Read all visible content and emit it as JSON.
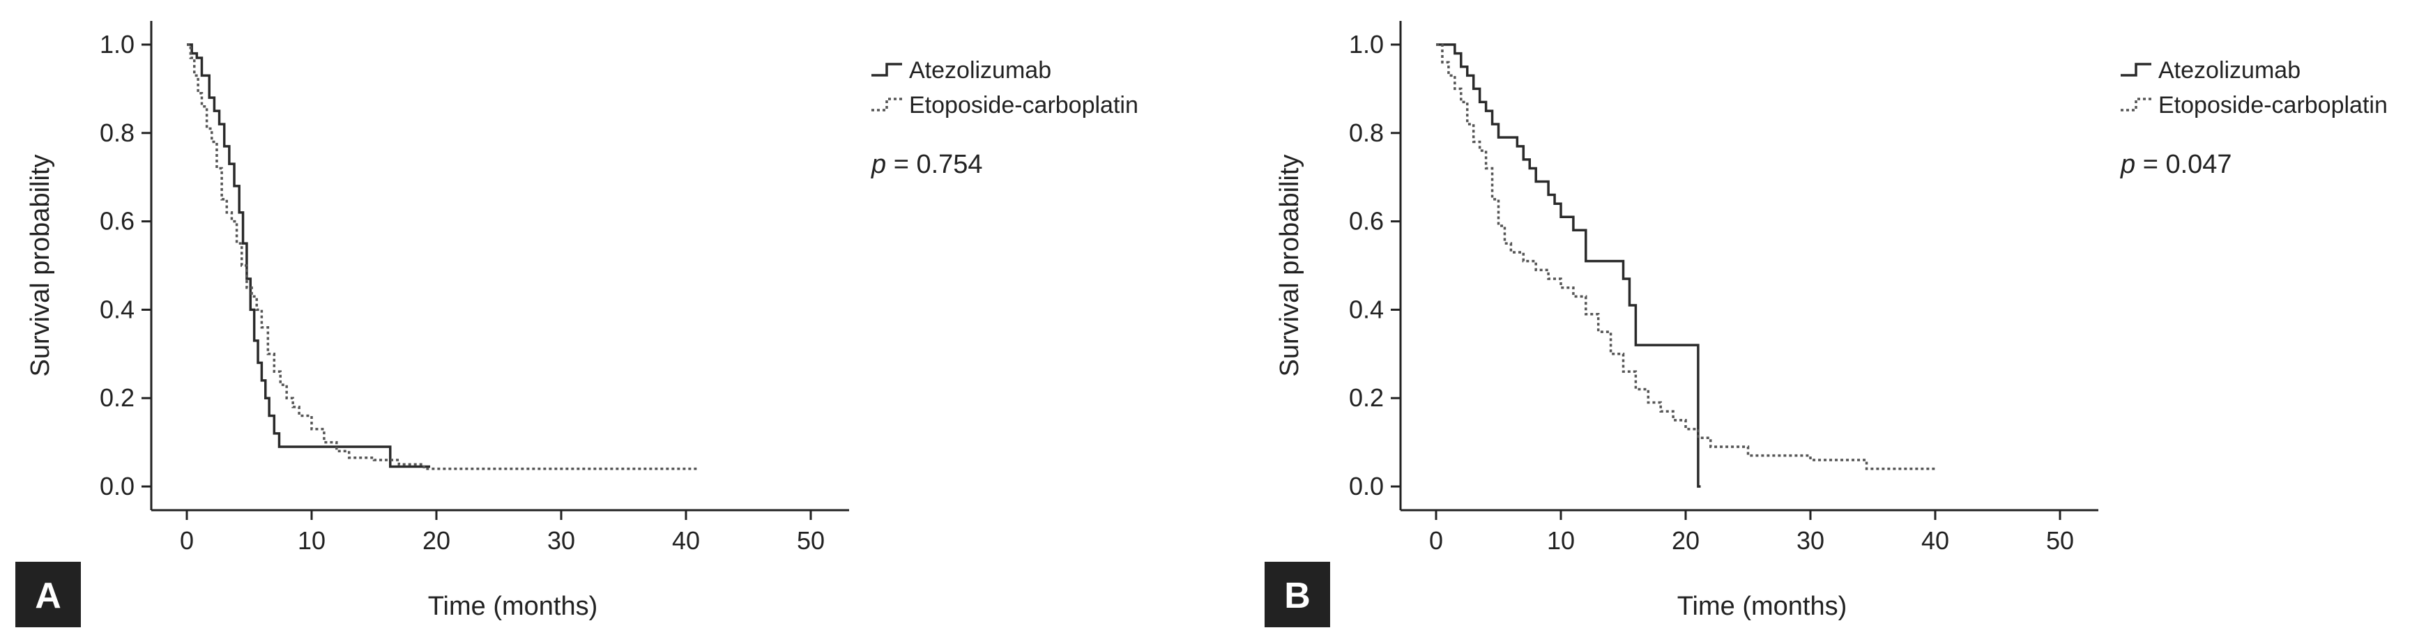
{
  "chart_data": [
    {
      "panel_label": "A",
      "type": "line",
      "xlabel": "Time (months)",
      "ylabel": "Survival probability",
      "xlim": [
        0,
        50
      ],
      "ylim": [
        0,
        1
      ],
      "xticks": [
        0,
        10,
        20,
        30,
        40,
        50
      ],
      "yticks": [
        0.0,
        0.2,
        0.4,
        0.6,
        0.8,
        1.0
      ],
      "x_tick_labels": [
        "0",
        "10",
        "20",
        "30",
        "40",
        "50"
      ],
      "y_tick_labels": [
        "0.0",
        "0.2",
        "0.4",
        "0.6",
        "0.8",
        "1.0"
      ],
      "legend": {
        "placement": "top-right"
      },
      "annotation": {
        "prefix": "p",
        "text": " = 0.754"
      },
      "series": [
        {
          "name": "Atezolizumab",
          "style": "solid",
          "step": true,
          "x": [
            0,
            0.4,
            0.8,
            1.2,
            1.8,
            2.2,
            2.6,
            3.0,
            3.4,
            3.8,
            4.2,
            4.5,
            4.8,
            5.1,
            5.4,
            5.7,
            6.0,
            6.3,
            6.6,
            7.0,
            7.4,
            16.3,
            19.5
          ],
          "y": [
            1.0,
            0.98,
            0.97,
            0.93,
            0.88,
            0.85,
            0.82,
            0.77,
            0.73,
            0.68,
            0.62,
            0.55,
            0.47,
            0.4,
            0.33,
            0.28,
            0.24,
            0.2,
            0.16,
            0.12,
            0.09,
            0.045,
            0.045
          ]
        },
        {
          "name": "Etoposide-carboplatin",
          "style": "dotted",
          "step": true,
          "x": [
            0,
            0.3,
            0.6,
            0.9,
            1.2,
            1.6,
            2.0,
            2.4,
            2.8,
            3.2,
            3.6,
            4.0,
            4.4,
            4.8,
            5.2,
            5.6,
            6.0,
            6.5,
            7.0,
            7.5,
            8.0,
            8.5,
            9.0,
            10.0,
            11.0,
            12.0,
            13.0,
            15.0,
            17.0,
            19.0,
            41.0
          ],
          "y": [
            1.0,
            0.97,
            0.93,
            0.89,
            0.86,
            0.81,
            0.78,
            0.72,
            0.65,
            0.62,
            0.6,
            0.55,
            0.5,
            0.45,
            0.43,
            0.4,
            0.36,
            0.3,
            0.26,
            0.23,
            0.2,
            0.18,
            0.16,
            0.13,
            0.1,
            0.08,
            0.065,
            0.06,
            0.05,
            0.04,
            0.04
          ]
        }
      ]
    },
    {
      "panel_label": "B",
      "type": "line",
      "xlabel": "Time (months)",
      "ylabel": "Survival probability",
      "xlim": [
        0,
        50
      ],
      "ylim": [
        0,
        1
      ],
      "xticks": [
        0,
        10,
        20,
        30,
        40,
        50
      ],
      "yticks": [
        0.0,
        0.2,
        0.4,
        0.6,
        0.8,
        1.0
      ],
      "x_tick_labels": [
        "0",
        "10",
        "20",
        "30",
        "40",
        "50"
      ],
      "y_tick_labels": [
        "0.0",
        "0.2",
        "0.4",
        "0.6",
        "0.8",
        "1.0"
      ],
      "legend": {
        "placement": "top-right"
      },
      "annotation": {
        "prefix": "p",
        "text": " = 0.047"
      },
      "series": [
        {
          "name": "Atezolizumab",
          "style": "solid",
          "step": true,
          "x": [
            0,
            1.5,
            2.0,
            2.5,
            3.0,
            3.5,
            4.0,
            4.5,
            5.0,
            6.5,
            7.0,
            7.5,
            8.0,
            9.0,
            9.5,
            10.0,
            11.0,
            12.0,
            15.0,
            15.5,
            16.0,
            21.0,
            21.2
          ],
          "y": [
            1.0,
            0.98,
            0.95,
            0.93,
            0.9,
            0.87,
            0.85,
            0.82,
            0.79,
            0.77,
            0.74,
            0.72,
            0.69,
            0.66,
            0.64,
            0.61,
            0.58,
            0.51,
            0.47,
            0.41,
            0.32,
            0.0,
            0.0
          ]
        },
        {
          "name": "Etoposide-carboplatin",
          "style": "dotted",
          "step": true,
          "x": [
            0,
            0.5,
            1.0,
            1.5,
            2.0,
            2.5,
            3.0,
            3.5,
            4.0,
            4.5,
            5.0,
            5.5,
            6.0,
            7.0,
            8.0,
            9.0,
            10.0,
            11.0,
            12.0,
            13.0,
            14.0,
            15.0,
            16.0,
            17.0,
            18.0,
            19.0,
            20.0,
            21.0,
            22.0,
            25.0,
            30.0,
            34.5,
            40.0
          ],
          "y": [
            1.0,
            0.96,
            0.93,
            0.9,
            0.87,
            0.82,
            0.78,
            0.76,
            0.72,
            0.65,
            0.59,
            0.55,
            0.53,
            0.51,
            0.49,
            0.47,
            0.45,
            0.43,
            0.39,
            0.35,
            0.3,
            0.26,
            0.22,
            0.19,
            0.17,
            0.15,
            0.13,
            0.11,
            0.09,
            0.07,
            0.06,
            0.04,
            0.04
          ]
        }
      ]
    }
  ]
}
